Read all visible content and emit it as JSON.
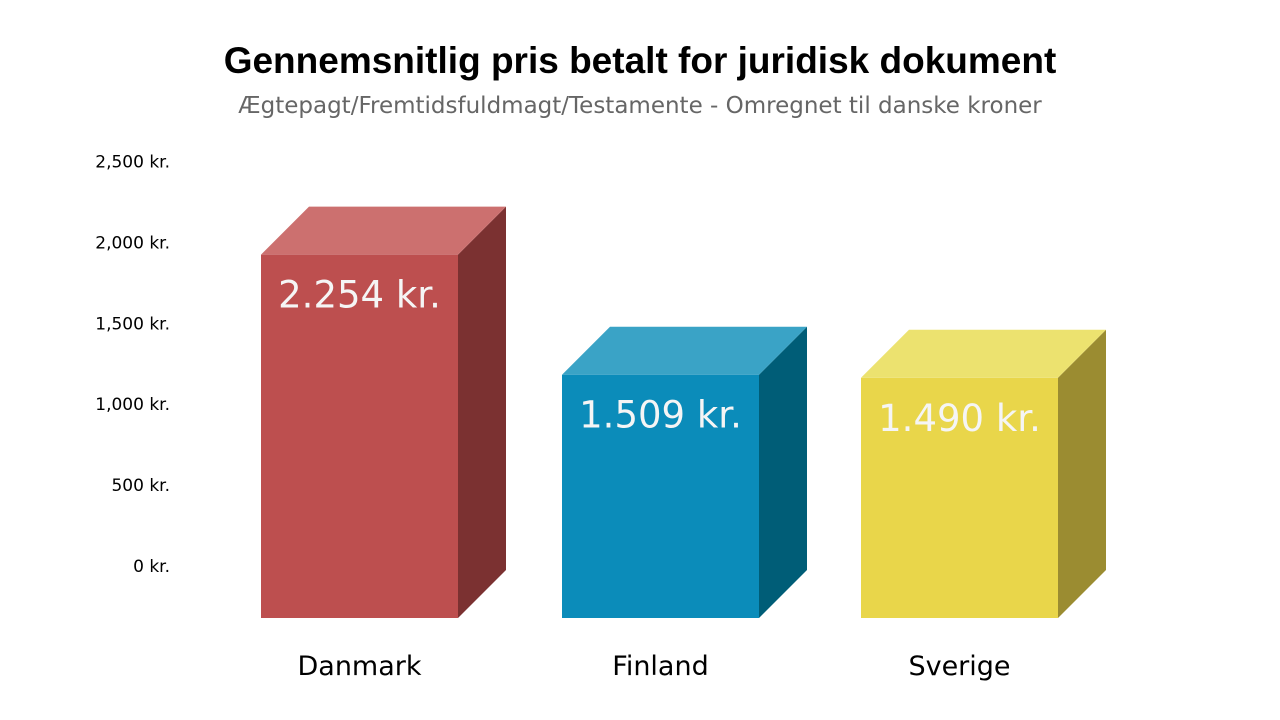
{
  "chart_data": {
    "type": "bar",
    "title": "Gennemsnitlig pris betalt for juridisk dokument",
    "subtitle": "Ægtepagt/Fremtidsfuldmagt/Testamente - Omregnet til danske kroner",
    "categories": [
      "Danmark",
      "Finland",
      "Sverige"
    ],
    "values": [
      2254,
      1509,
      1490
    ],
    "value_labels": [
      "2.254 kr.",
      "1.509 kr.",
      "1.490 kr."
    ],
    "colors": [
      {
        "front": "#bd4f4f",
        "top": "#cc706f",
        "side": "#7b3131"
      },
      {
        "front": "#0b8cba",
        "top": "#3aa3c6",
        "side": "#005d77"
      },
      {
        "front": "#e9d64a",
        "top": "#ece26f",
        "side": "#9b8c31"
      }
    ],
    "yticks": [
      0,
      500,
      1000,
      1500,
      2000,
      2500
    ],
    "ytick_labels": [
      "0 kr.",
      "500 kr.",
      "1,000 kr.",
      "1,500 kr.",
      "2,000 kr.",
      "2,500 kr."
    ],
    "ylim": [
      0,
      2500
    ],
    "xlabel": "",
    "ylabel": "",
    "grid": false,
    "legend": "none"
  }
}
